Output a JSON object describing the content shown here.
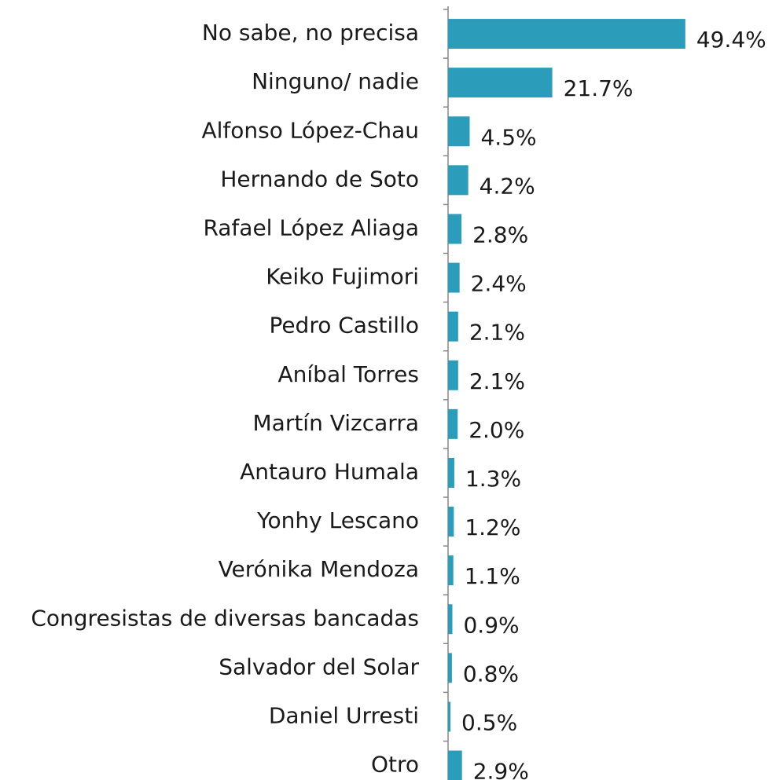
{
  "chart_data": {
    "type": "bar",
    "orientation": "horizontal",
    "color": "#2b9dbb",
    "categories": [
      "No sabe, no precisa",
      "Ninguno/ nadie",
      "Alfonso López-Chau",
      "Hernando de Soto",
      "Rafael López Aliaga",
      "Keiko Fujimori",
      "Pedro Castillo",
      "Aníbal Torres",
      "Martín Vizcarra",
      "Antauro Humala",
      "Yonhy Lescano",
      "Verónika Mendoza",
      "Congresistas de diversas bancadas",
      "Salvador del Solar",
      "Daniel Urresti",
      "Otro"
    ],
    "values": [
      49.4,
      21.7,
      4.5,
      4.2,
      2.8,
      2.4,
      2.1,
      2.1,
      2.0,
      1.3,
      1.2,
      1.1,
      0.9,
      0.8,
      0.5,
      2.9
    ],
    "value_labels": [
      "49.4%",
      "21.7%",
      "4.5%",
      "4.2%",
      "2.8%",
      "2.4%",
      "2.1%",
      "2.1%",
      "2.0%",
      "1.3%",
      "1.2%",
      "1.1%",
      "0.9%",
      "0.8%",
      "0.5%",
      "2.9%"
    ]
  }
}
